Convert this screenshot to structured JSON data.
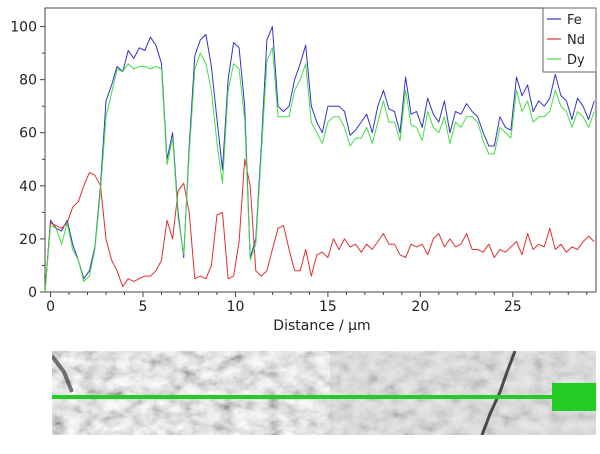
{
  "chart_data": {
    "type": "line",
    "xlabel": "Distance / µm",
    "ylabel": "",
    "xlim": [
      -0.3,
      29.5
    ],
    "ylim": [
      0,
      107
    ],
    "xticks": [
      0,
      5,
      10,
      15,
      20,
      25
    ],
    "yticks": [
      0,
      20,
      40,
      60,
      80,
      100
    ],
    "grid": false,
    "legend": "top-right",
    "x": [
      -0.3,
      0,
      0.3,
      0.6,
      0.9,
      1.2,
      1.5,
      1.8,
      2.1,
      2.4,
      2.7,
      3.0,
      3.3,
      3.6,
      3.9,
      4.2,
      4.5,
      4.8,
      5.1,
      5.4,
      5.7,
      6.0,
      6.3,
      6.6,
      6.9,
      7.2,
      7.5,
      7.8,
      8.1,
      8.4,
      8.7,
      9.0,
      9.3,
      9.6,
      9.9,
      10.2,
      10.5,
      10.8,
      11.1,
      11.4,
      11.7,
      12.0,
      12.3,
      12.6,
      12.9,
      13.2,
      13.5,
      13.8,
      14.1,
      14.4,
      14.7,
      15.0,
      15.3,
      15.6,
      15.9,
      16.2,
      16.5,
      16.8,
      17.1,
      17.4,
      17.7,
      18.0,
      18.3,
      18.6,
      18.9,
      19.2,
      19.5,
      19.8,
      20.1,
      20.4,
      20.7,
      21.0,
      21.3,
      21.6,
      21.9,
      22.2,
      22.5,
      22.8,
      23.1,
      23.4,
      23.7,
      24.0,
      24.3,
      24.6,
      24.9,
      25.2,
      25.5,
      25.8,
      26.1,
      26.4,
      26.7,
      27.0,
      27.3,
      27.6,
      27.9,
      28.2,
      28.5,
      28.8,
      29.1,
      29.4
    ],
    "series": [
      {
        "name": "Fe",
        "color": "#3333cc",
        "values": [
          0,
          27,
          24,
          23,
          27,
          18,
          12,
          5,
          8,
          17,
          40,
          72,
          78,
          85,
          83,
          91,
          88,
          92,
          91,
          96,
          93,
          86,
          50,
          60,
          30,
          13,
          55,
          89,
          95,
          97,
          85,
          65,
          46,
          80,
          94,
          92,
          70,
          13,
          20,
          55,
          95,
          100,
          70,
          68,
          70,
          80,
          86,
          93,
          70,
          64,
          60,
          70,
          70,
          70,
          68,
          59,
          61,
          64,
          67,
          60,
          70,
          76,
          69,
          68,
          60,
          81,
          67,
          68,
          62,
          73,
          67,
          64,
          72,
          60,
          68,
          67,
          71,
          68,
          66,
          60,
          55,
          55,
          66,
          62,
          61,
          81,
          74,
          78,
          68,
          72,
          70,
          73,
          82,
          74,
          72,
          65,
          73,
          70,
          65,
          72
        ]
      },
      {
        "name": "Nd",
        "color": "#e03030",
        "values": [
          0,
          26,
          25,
          24,
          26,
          32,
          34,
          40,
          45,
          44,
          40,
          20,
          12,
          8,
          2,
          5,
          4,
          5,
          6,
          6,
          8,
          12,
          27,
          20,
          38,
          41,
          30,
          5,
          6,
          5,
          10,
          29,
          30,
          5,
          6,
          19,
          50,
          40,
          8,
          6,
          8,
          16,
          24,
          25,
          16,
          8,
          8,
          16,
          6,
          14,
          15,
          13,
          20,
          16,
          20,
          17,
          18,
          15,
          18,
          16,
          19,
          22,
          18,
          18,
          14,
          13,
          18,
          17,
          18,
          14,
          20,
          22,
          17,
          20,
          17,
          18,
          22,
          16,
          16,
          15,
          18,
          13,
          16,
          15,
          17,
          19,
          14,
          22,
          16,
          18,
          17,
          24,
          16,
          18,
          15,
          17,
          16,
          19,
          21,
          19
        ]
      },
      {
        "name": "Dy",
        "color": "#44dd44",
        "values": [
          0,
          25,
          24,
          18,
          26,
          16,
          12,
          4,
          6,
          16,
          38,
          66,
          75,
          84,
          83,
          86,
          84,
          85,
          85,
          84,
          85,
          84,
          48,
          58,
          28,
          14,
          52,
          84,
          90,
          86,
          76,
          56,
          41,
          76,
          86,
          84,
          65,
          12,
          18,
          52,
          87,
          92,
          66,
          66,
          66,
          76,
          80,
          86,
          64,
          60,
          56,
          64,
          66,
          66,
          62,
          55,
          58,
          58,
          62,
          56,
          64,
          72,
          64,
          64,
          57,
          76,
          63,
          62,
          57,
          68,
          62,
          60,
          66,
          56,
          64,
          62,
          66,
          66,
          64,
          57,
          52,
          52,
          62,
          60,
          58,
          76,
          68,
          72,
          64,
          66,
          66,
          68,
          76,
          70,
          68,
          62,
          68,
          66,
          62,
          68
        ]
      }
    ]
  },
  "image_strip": {
    "icon": "sem-micrograph-linescan-image",
    "line_color": "#22cc22"
  }
}
